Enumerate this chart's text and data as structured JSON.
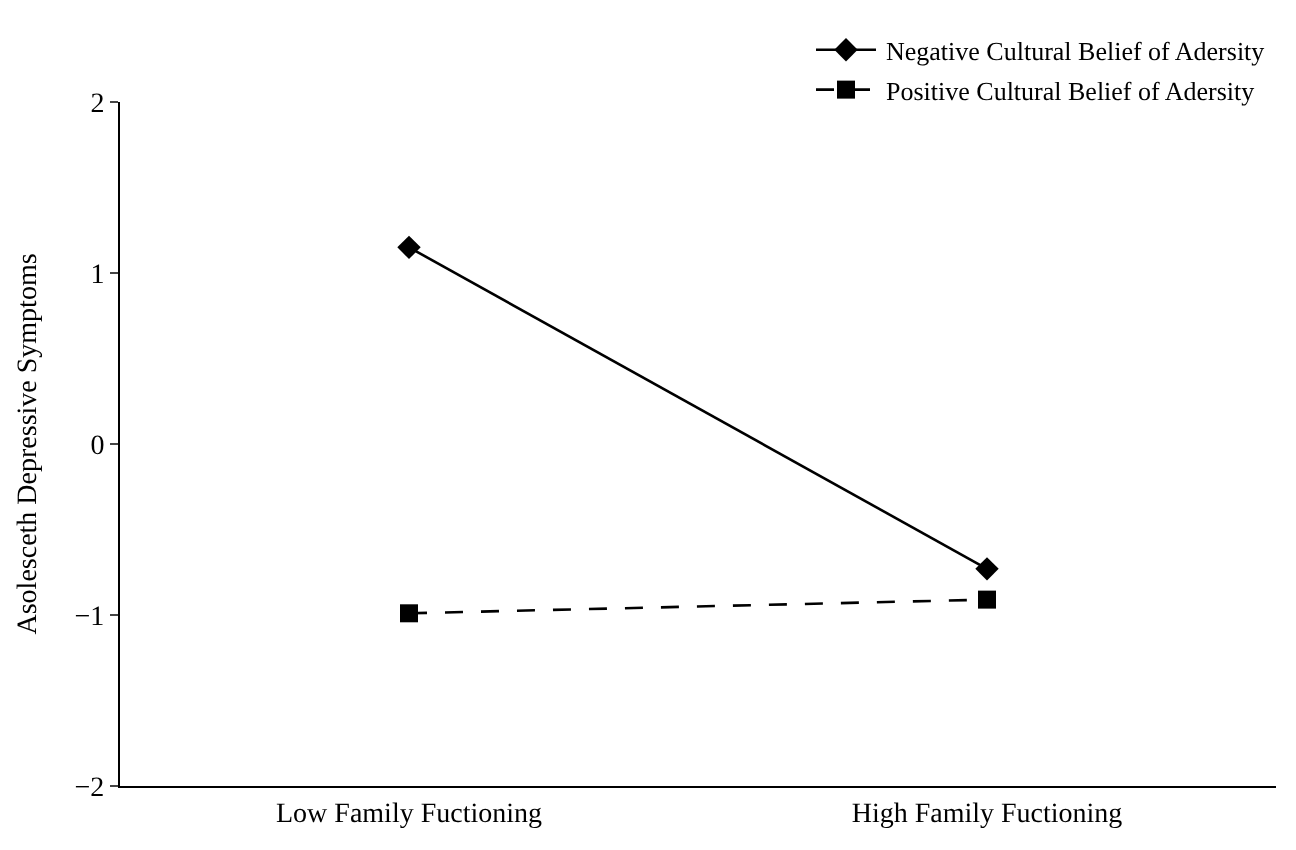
{
  "chart_data": {
    "type": "line",
    "ylabel": "Asolesceth Depressive Symptoms",
    "categories": [
      "Low Family Fuctioning",
      "High Family Fuctioning"
    ],
    "series": [
      {
        "name": "Negative Cultural Belief of Adersity",
        "color": "#000000",
        "values": [
          1.15,
          -0.73
        ],
        "marker": "diamond",
        "line_style": "solid"
      },
      {
        "name": "Positive Cultural Belief of Adersity",
        "color": "#000000",
        "values": [
          -0.99,
          -0.91
        ],
        "marker": "square",
        "line_style": "dashed"
      }
    ],
    "ylim": [
      -2,
      2
    ],
    "yticks": [
      {
        "value": -2,
        "label": "−2"
      },
      {
        "value": -1,
        "label": "−1"
      },
      0,
      1,
      2
    ],
    "legend": "top right"
  }
}
